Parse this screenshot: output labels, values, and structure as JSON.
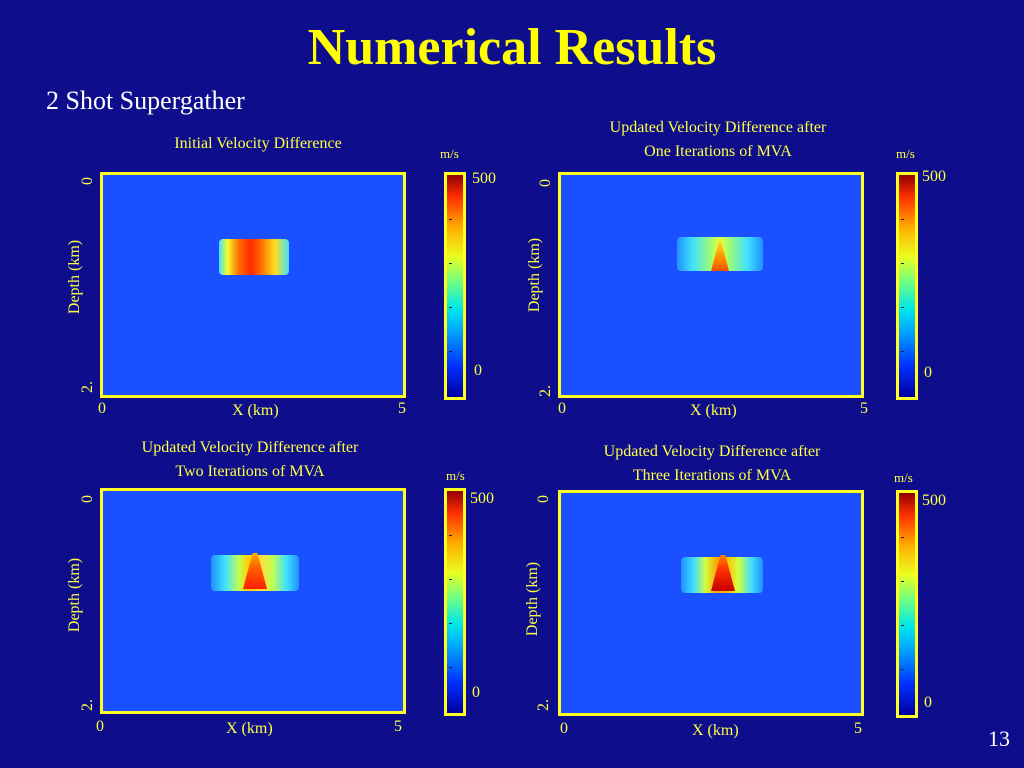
{
  "slide": {
    "title": "Numerical Results",
    "subtitle": "2 Shot Supergather",
    "page_number": "13"
  },
  "colors": {
    "background": "#0e0e8c",
    "title": "#ffff00",
    "plot_border": "#ffff22",
    "plot_background": "#1a50ff"
  },
  "colormap": [
    "#0000a0",
    "#0030ff",
    "#00a8ff",
    "#00e8e8",
    "#70ff80",
    "#e8ff20",
    "#ffb000",
    "#ff3000",
    "#900000"
  ],
  "panels": [
    {
      "title": "Initial Velocity Difference",
      "y_label": "Depth (km)",
      "y_tick_top": "0",
      "y_tick_bottom": "2.",
      "x_label": "X (km)",
      "x_tick_left": "0",
      "x_tick_right": "5",
      "colorbar_unit": "m/s",
      "colorbar_max": "500",
      "colorbar_min": "0"
    },
    {
      "title": "Updated Velocity Difference after\nOne Iterations of MVA",
      "y_label": "Depth (km)",
      "y_tick_top": "0",
      "y_tick_bottom": "2.",
      "x_label": "X (km)",
      "x_tick_left": "0",
      "x_tick_right": "5",
      "colorbar_unit": "m/s",
      "colorbar_max": "500",
      "colorbar_min": "0"
    },
    {
      "title": "Updated Velocity Difference after\nTwo Iterations of MVA",
      "y_label": "Depth (km)",
      "y_tick_top": "0",
      "y_tick_bottom": "2.",
      "x_label": "X (km)",
      "x_tick_left": "0",
      "x_tick_right": "5",
      "colorbar_unit": "m/s",
      "colorbar_max": "500",
      "colorbar_min": "0"
    },
    {
      "title": "Updated Velocity Difference after\nThree Iterations of MVA",
      "y_label": "Depth (km)",
      "y_tick_top": "0",
      "y_tick_bottom": "2.",
      "x_label": "X (km)",
      "x_tick_left": "0",
      "x_tick_right": "5",
      "colorbar_unit": "m/s",
      "colorbar_max": "500",
      "colorbar_min": "0"
    }
  ]
}
